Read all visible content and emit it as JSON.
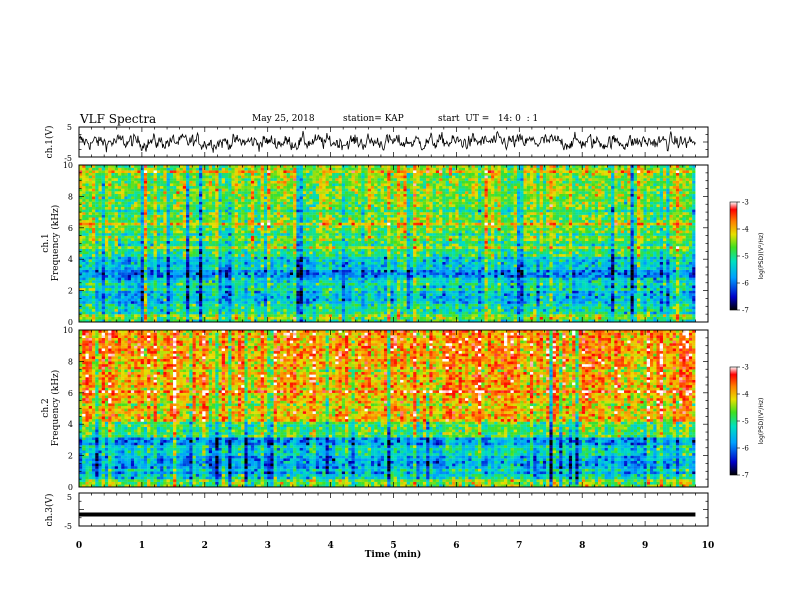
{
  "header": {
    "title": "VLF Spectra",
    "date": "May 25, 2018",
    "station": "station= KAP",
    "start_ut": "start  UT =   14: 0  : 1"
  },
  "chart_data": [
    {
      "type": "line",
      "panel": "ch1-waveform",
      "ylabel": "ch.1(V)",
      "ylim": [
        -5,
        5
      ],
      "yticks": [
        "5",
        "-5"
      ],
      "xlim": [
        0,
        10
      ],
      "note": "noisy black trace, amplitude roughly -3..3 V, spans 0 to ~9.8 min"
    },
    {
      "type": "heatmap",
      "panel": "ch1-spectrogram",
      "title": "ch.1",
      "ylabel": "Frequency (kHz)",
      "ylim": [
        0,
        10
      ],
      "yticks": [
        "0",
        "2",
        "4",
        "6",
        "8",
        "10"
      ],
      "xlim": [
        0,
        9.8
      ],
      "color_range": [
        -7,
        -3
      ],
      "colorbar_label": "log(PSD)(V²/Hz)",
      "colorbar_ticks": [
        "-3",
        "-4",
        "-5",
        "-6",
        "-7"
      ],
      "band_levels": [
        {
          "f0": 0,
          "f1": 0.5,
          "level": -4.5
        },
        {
          "f0": 0.5,
          "f1": 1.2,
          "level": -5.1
        },
        {
          "f0": 1.2,
          "f1": 2.0,
          "level": -5.5
        },
        {
          "f0": 2.0,
          "f1": 2.5,
          "level": -5.0
        },
        {
          "f0": 2.5,
          "f1": 3.3,
          "level": -5.9
        },
        {
          "f0": 3.3,
          "f1": 4.2,
          "level": -5.4
        },
        {
          "f0": 4.2,
          "f1": 5.2,
          "level": -4.9
        },
        {
          "f0": 5.2,
          "f1": 6.5,
          "level": -4.6
        },
        {
          "f0": 6.5,
          "f1": 8.0,
          "level": -4.6
        },
        {
          "f0": 8.0,
          "f1": 10.0,
          "level": -4.5
        }
      ]
    },
    {
      "type": "heatmap",
      "panel": "ch2-spectrogram",
      "title": "ch.2",
      "ylabel": "Frequency (kHz)",
      "ylim": [
        0,
        10
      ],
      "yticks": [
        "0",
        "2",
        "4",
        "6",
        "8",
        "10"
      ],
      "xlim": [
        0,
        9.8
      ],
      "color_range": [
        -7,
        -3
      ],
      "colorbar_label": "log(PSD)(V²/Hz)",
      "colorbar_ticks": [
        "-3",
        "-4",
        "-5",
        "-6",
        "-7"
      ],
      "band_levels": [
        {
          "f0": 0,
          "f1": 0.5,
          "level": -4.6
        },
        {
          "f0": 0.5,
          "f1": 1.2,
          "level": -5.3
        },
        {
          "f0": 1.2,
          "f1": 2.0,
          "level": -5.7
        },
        {
          "f0": 2.0,
          "f1": 2.6,
          "level": -5.3
        },
        {
          "f0": 2.6,
          "f1": 3.2,
          "level": -5.8
        },
        {
          "f0": 3.2,
          "f1": 4.2,
          "level": -4.8
        },
        {
          "f0": 4.2,
          "f1": 6.5,
          "level": -4.0
        },
        {
          "f0": 6.5,
          "f1": 8.0,
          "level": -3.9
        },
        {
          "f0": 8.0,
          "f1": 10.0,
          "level": -3.8
        }
      ]
    },
    {
      "type": "line",
      "panel": "ch3-waveform",
      "ylabel": "ch.3(V)",
      "ylim": [
        -5,
        5
      ],
      "yticks": [
        "5",
        "-5"
      ],
      "xlim": [
        0,
        10
      ],
      "xlabel": "Time (min)",
      "xticks": [
        "0",
        "1",
        "2",
        "3",
        "4",
        "5",
        "6",
        "7",
        "8",
        "9",
        "10"
      ],
      "constant_value": -1.5,
      "note": "flat thick black line across 0 to ~9.8 min"
    }
  ]
}
